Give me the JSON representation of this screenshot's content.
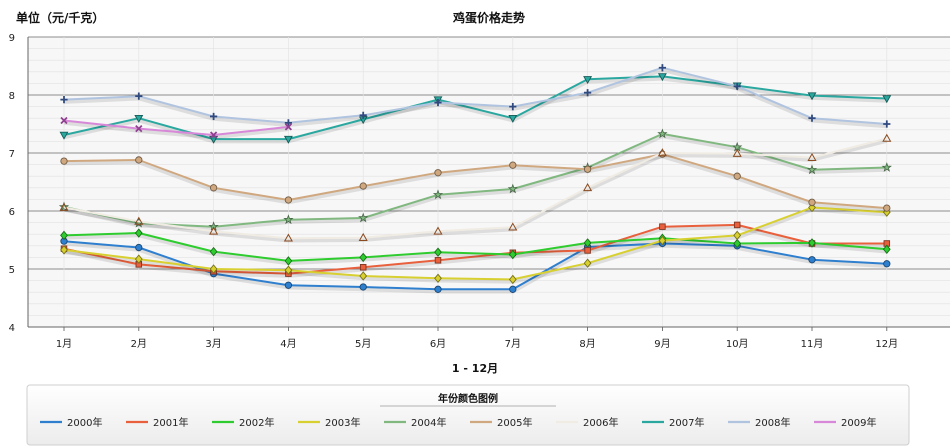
{
  "chart_data": {
    "type": "line",
    "title": "鸡蛋价格走势",
    "unit_label": "单位（元/千克）",
    "xlabel": "1 - 12月",
    "ylabel": "",
    "categories": [
      "1月",
      "2月",
      "3月",
      "4月",
      "5月",
      "6月",
      "7月",
      "8月",
      "9月",
      "10月",
      "11月",
      "12月"
    ],
    "ylim": [
      4,
      9
    ],
    "yticks": [
      4,
      5,
      6,
      7,
      8,
      9
    ],
    "grid": true,
    "legend_title": "年份颜色图例",
    "legend_position": "bottom",
    "series": [
      {
        "name": "2000年",
        "color": "#2f7fcf",
        "marker": "circle",
        "values": [
          5.48,
          5.37,
          4.92,
          4.72,
          4.69,
          4.65,
          4.65,
          5.38,
          5.44,
          5.4,
          5.16,
          5.09
        ]
      },
      {
        "name": "2001年",
        "color": "#e8603c",
        "marker": "square",
        "values": [
          5.35,
          5.08,
          4.96,
          4.92,
          5.03,
          5.15,
          5.28,
          5.32,
          5.73,
          5.76,
          5.44,
          5.44
        ]
      },
      {
        "name": "2002年",
        "color": "#2ecc2e",
        "marker": "diamond",
        "values": [
          5.58,
          5.62,
          5.3,
          5.14,
          5.2,
          5.29,
          5.25,
          5.45,
          5.53,
          5.44,
          5.45,
          5.34
        ]
      },
      {
        "name": "2003年",
        "color": "#d8d030",
        "marker": "diamond",
        "values": [
          5.33,
          5.17,
          5.0,
          4.98,
          4.88,
          4.84,
          4.82,
          5.1,
          5.49,
          5.58,
          6.06,
          5.98
        ]
      },
      {
        "name": "2004年",
        "color": "#80b880",
        "marker": "star",
        "values": [
          6.07,
          5.79,
          5.73,
          5.85,
          5.88,
          6.28,
          6.38,
          6.75,
          7.33,
          7.1,
          6.71,
          6.75
        ]
      },
      {
        "name": "2005年",
        "color": "#d0a880",
        "marker": "circle",
        "values": [
          6.86,
          6.88,
          6.4,
          6.19,
          6.43,
          6.66,
          6.79,
          6.72,
          6.98,
          6.6,
          6.15,
          6.05
        ]
      },
      {
        "name": "2006年",
        "color": "#f0ece4",
        "marker": "triangle",
        "values": [
          6.06,
          5.82,
          5.65,
          5.53,
          5.54,
          5.65,
          5.72,
          6.4,
          7.0,
          6.99,
          6.92,
          7.25
        ]
      },
      {
        "name": "2007年",
        "color": "#2aa8a0",
        "marker": "triangle-down",
        "values": [
          7.31,
          7.6,
          7.24,
          7.24,
          7.58,
          7.92,
          7.6,
          8.27,
          8.32,
          8.16,
          7.99,
          7.94
        ]
      },
      {
        "name": "2008年",
        "color": "#b0c4e0",
        "marker": "plus",
        "values": [
          7.92,
          7.98,
          7.63,
          7.52,
          7.65,
          7.87,
          7.8,
          8.04,
          8.47,
          8.15,
          7.6,
          7.5
        ]
      },
      {
        "name": "2009年",
        "color": "#d888d8",
        "marker": "x",
        "values": [
          7.56,
          7.42,
          7.31,
          7.45,
          null,
          null,
          null,
          null,
          null,
          null,
          null,
          null
        ]
      }
    ]
  }
}
